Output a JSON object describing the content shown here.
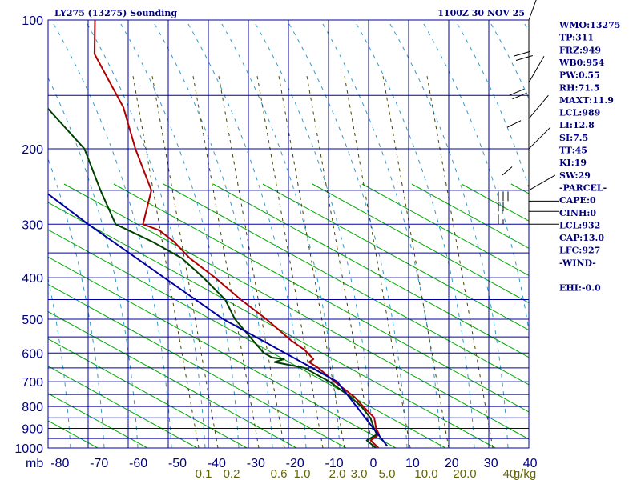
{
  "chart_data": {
    "type": "line",
    "title": "LY275 (13275) Sounding",
    "timestamp": "1100Z 30 NOV 25",
    "x_axis": {
      "unit_label": "mb",
      "temperature_ticks": [
        -80,
        -70,
        -60,
        -50,
        -40,
        -30,
        -20,
        -10,
        0,
        10,
        20,
        30,
        40
      ],
      "temperature_tick_labels": [
        "-80",
        "-70",
        "-60",
        "-50",
        "-40",
        "-30",
        "-20",
        "-10",
        "0",
        "10",
        "20",
        "30",
        "40"
      ],
      "mixing_ratio_labels": [
        "0.1",
        "0.2",
        "0.6",
        "1.0",
        "2.0",
        "3.0",
        "5.0",
        "10.0",
        "20.0",
        "40",
        "g/kg"
      ]
    },
    "y_axis": {
      "pressure_ticks": [
        100,
        200,
        300,
        400,
        500,
        600,
        700,
        800,
        900,
        1000
      ],
      "pressure_tick_labels": [
        "100",
        "200",
        "300",
        "400",
        "500",
        "600",
        "700",
        "800",
        "900",
        "1000"
      ],
      "ylim": [
        100,
        1000
      ]
    },
    "series": [
      {
        "name": "temperature",
        "color": "#b00000",
        "points": [
          [
            1000,
            1.3
          ],
          [
            960,
            -0.5
          ],
          [
            930,
            1.8
          ],
          [
            900,
            1.2
          ],
          [
            850,
            1.0
          ],
          [
            800,
            -1.5
          ],
          [
            760,
            -3.5
          ],
          [
            700,
            -8.2
          ],
          [
            650,
            -12.0
          ],
          [
            630,
            -14.2
          ],
          [
            620,
            -13.0
          ],
          [
            590,
            -15.0
          ],
          [
            560,
            -18.3
          ],
          [
            500,
            -24.0
          ],
          [
            450,
            -30.0
          ],
          [
            400,
            -36.0
          ],
          [
            360,
            -42.0
          ],
          [
            330,
            -45.5
          ],
          [
            310,
            -49.0
          ],
          [
            300,
            -53.0
          ],
          [
            250,
            -50.0
          ],
          [
            200,
            -53.0
          ],
          [
            160,
            -55.0
          ],
          [
            120,
            -61.0
          ],
          [
            100,
            -60.0
          ]
        ]
      },
      {
        "name": "dewpoint",
        "color": "#004000",
        "points": [
          [
            1000,
            0.7
          ],
          [
            960,
            -1.5
          ],
          [
            930,
            1.2
          ],
          [
            900,
            0.7
          ],
          [
            850,
            0.0
          ],
          [
            800,
            -2.0
          ],
          [
            760,
            -4.5
          ],
          [
            700,
            -9.5
          ],
          [
            650,
            -15.5
          ],
          [
            630,
            -23.0
          ],
          [
            620,
            -20.5
          ],
          [
            615,
            -23.5
          ],
          [
            600,
            -25.5
          ],
          [
            560,
            -28.0
          ],
          [
            500,
            -32.0
          ],
          [
            450,
            -34.0
          ],
          [
            400,
            -39.0
          ],
          [
            360,
            -44.0
          ],
          [
            330,
            -51.0
          ],
          [
            300,
            -60.0
          ],
          [
            250,
            -63.0
          ],
          [
            200,
            -66.0
          ],
          [
            150,
            -77.0
          ]
        ]
      },
      {
        "name": "parcel",
        "color": "#0000a0",
        "points": [
          [
            990,
            3.6
          ],
          [
            700,
            -7.5
          ],
          [
            500,
            -35.0
          ],
          [
            300,
            -67.0
          ],
          [
            240,
            -80.0
          ]
        ]
      }
    ],
    "wind_barbs": [
      {
        "pressure": 100,
        "direction": 340,
        "speed": 10
      },
      {
        "pressure": 140,
        "direction": 330,
        "speed": 20
      },
      {
        "pressure": 170,
        "direction": 320,
        "speed": 20
      },
      {
        "pressure": 200,
        "direction": 315,
        "speed": 10
      },
      {
        "pressure": 250,
        "direction": 300,
        "speed": 10
      },
      {
        "pressure": 265,
        "direction": 270,
        "speed": 30
      },
      {
        "pressure": 280,
        "direction": 270,
        "speed": 20
      },
      {
        "pressure": 300,
        "direction": 270,
        "speed": 15
      }
    ],
    "indices": [
      "WMO:13275",
      "TP:311",
      "FRZ:949",
      "WB0:954",
      "PW:0.55",
      "RH:71.5",
      "MAXT:11.9",
      "LCL:989",
      "LI:12.8",
      "SI:7.5",
      "TT:45",
      "KI:19",
      "SW:29",
      "-PARCEL-",
      "CAPE:0",
      "CINH:0",
      "LCL:932",
      "CAP:13.0",
      "LFC:927",
      "-WIND-",
      "",
      "EHI:-0.0"
    ]
  },
  "colors": {
    "grid": "#0000a0",
    "dry_adiabat": "#00aa00",
    "moist_adiabat": "#3399cc",
    "mixing_ratio": "#444400",
    "text": "#000080",
    "mix_label": "#666600"
  }
}
